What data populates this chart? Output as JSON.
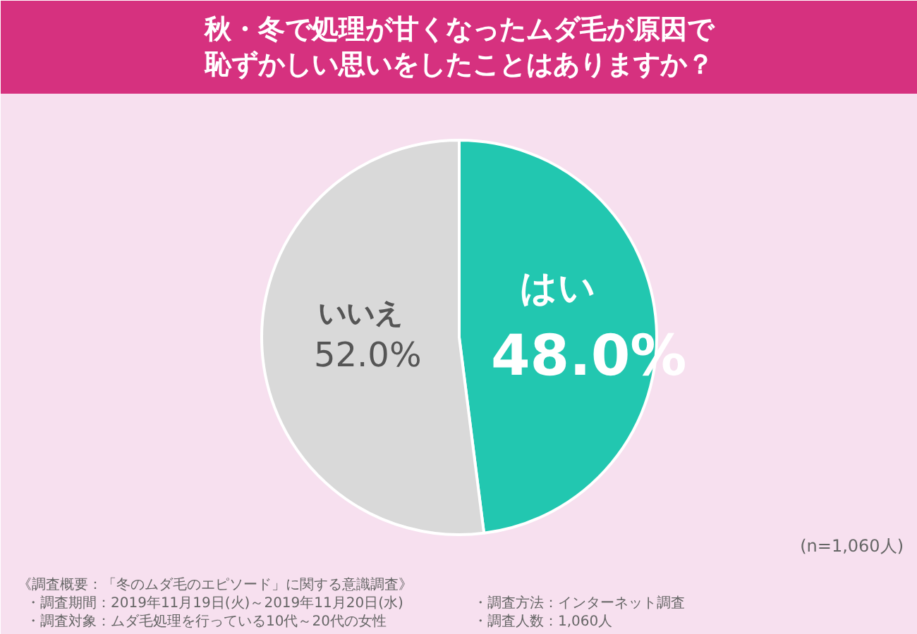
{
  "chart_data": {
    "type": "pie",
    "title": "秋・冬で処理が甘くなったムダ毛が原因で恥ずかしい思いをしたことはありますか？",
    "categories": [
      "はい",
      "いいえ"
    ],
    "values": [
      48.0,
      52.0
    ],
    "value_labels": [
      "48.0%",
      "52.0%"
    ],
    "colors": [
      "#22c7b0",
      "#d9d9d9"
    ],
    "annotations": [
      "(n=1,060人)",
      "《調査概要：「冬のムダ毛のエピソード」に関する意識調査》",
      "・調査期間：2019年11月19日(火)～2019年11月20日(水)",
      "・調査方法：インターネット調査",
      "・調査対象：ムダ毛処理を行っている10代～20代の女性",
      "・調査人数：1,060人"
    ]
  }
}
